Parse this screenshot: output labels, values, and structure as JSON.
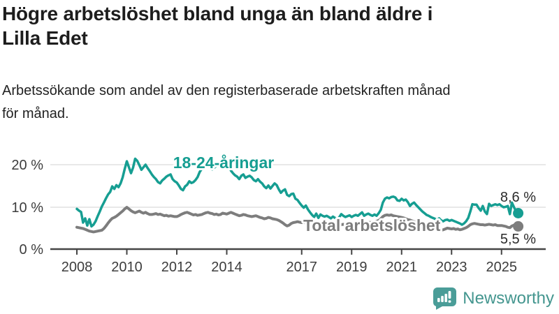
{
  "header": {
    "title_lines": [
      "Högre arbetslöshet bland unga än bland äldre i",
      "Lilla Edet"
    ],
    "subtitle_lines": [
      "Arbetssökande som andel av den registerbaserade arbetskraften månad",
      "för månad."
    ]
  },
  "footer": {
    "brand": "Newsworthy",
    "logo_icon": "bar-chart-speech-bubble",
    "logo_color": "#4a9d98",
    "brand_text_color": "#44968f"
  },
  "chart_data": {
    "type": "line",
    "x_unit": "month",
    "x_start": "2008-01",
    "x_end": "2025-09",
    "x_tick_years": [
      2008,
      2010,
      2012,
      2014,
      2017,
      2019,
      2021,
      2023,
      2025
    ],
    "x_tick_labels": [
      "2008",
      "2010",
      "2012",
      "2014",
      "2017",
      "2019",
      "2021",
      "2023",
      "2025"
    ],
    "y_ticks": [
      0,
      10,
      20
    ],
    "y_tick_labels": [
      "0 %",
      "10 %",
      "20 %"
    ],
    "ylim": [
      0,
      22.5
    ],
    "grid": "horizontal",
    "legend_position": "inline-labels",
    "series": [
      {
        "name": "18-24-åringar",
        "color": "#169e92",
        "end_label": "8,6 %",
        "end_value": 8.6,
        "values": [
          9.6,
          9.2,
          8.9,
          6.4,
          7.4,
          5.7,
          7.2,
          5.5,
          5.9,
          6.7,
          7.9,
          9.0,
          10.2,
          11.1,
          12.1,
          13.0,
          13.6,
          14.9,
          14.3,
          15.2,
          14.7,
          15.6,
          17.0,
          19.0,
          20.8,
          19.4,
          18.0,
          19.3,
          21.4,
          20.9,
          19.9,
          18.8,
          19.4,
          20.0,
          19.2,
          18.5,
          17.7,
          17.1,
          16.6,
          15.9,
          15.6,
          16.3,
          16.7,
          17.2,
          17.5,
          17.7,
          16.6,
          16.1,
          15.8,
          15.1,
          14.3,
          14.0,
          14.9,
          15.3,
          16.1,
          15.7,
          15.9,
          16.4,
          17.1,
          18.3,
          19.0,
          19.6,
          20.2,
          19.7,
          19.2,
          18.9,
          19.3,
          19.7,
          20.1,
          20.4,
          20.9,
          20.6,
          20.9,
          19.8,
          18.6,
          18.0,
          17.5,
          17.2,
          16.6,
          17.4,
          17.7,
          16.9,
          17.2,
          17.4,
          17.0,
          16.4,
          16.1,
          16.6,
          16.0,
          15.6,
          14.9,
          14.5,
          15.1,
          14.4,
          15.0,
          15.6,
          15.2,
          14.2,
          13.4,
          13.9,
          14.2,
          12.9,
          12.6,
          13.1,
          13.2,
          12.0,
          11.7,
          11.0,
          10.4,
          9.9,
          10.4,
          9.5,
          8.8,
          8.2,
          7.7,
          8.5,
          7.5,
          8.3,
          8.0,
          7.8,
          8.0,
          7.7,
          7.4,
          7.8,
          7.5,
          7.3,
          7.6,
          8.4,
          8.0,
          7.7,
          7.9,
          8.1,
          7.7,
          8.0,
          8.2,
          8.0,
          8.4,
          8.8,
          8.0,
          8.3,
          8.5,
          8.2,
          8.0,
          8.3,
          8.0,
          8.6,
          9.4,
          11.1,
          12.0,
          12.3,
          12.1,
          12.4,
          12.5,
          12.3,
          11.6,
          11.5,
          12.0,
          11.6,
          11.8,
          11.2,
          10.3,
          10.8,
          11.1,
          10.5,
          10.0,
          9.5,
          9.0,
          8.6,
          8.2,
          8.0,
          7.7,
          7.5,
          7.3,
          7.0,
          7.4,
          6.9,
          6.7,
          7.0,
          7.1,
          6.8,
          7.0,
          6.8,
          6.6,
          6.4,
          6.2,
          5.9,
          6.2,
          6.7,
          7.5,
          9.0,
          10.7,
          10.6,
          10.6,
          9.8,
          9.2,
          10.3,
          9.0,
          8.4,
          10.8,
          10.3,
          10.5,
          10.7,
          10.5,
          10.7,
          10.3,
          10.0,
          10.1,
          10.3,
          8.4,
          11.1,
          10.0,
          9.0,
          8.6
        ]
      },
      {
        "name": "Total arbetslöshet",
        "color": "#7d7d7d",
        "end_label": "5,5 %",
        "end_value": 5.5,
        "values": [
          5.3,
          5.2,
          5.1,
          5.0,
          4.8,
          4.6,
          4.4,
          4.3,
          4.2,
          4.3,
          4.4,
          4.5,
          4.6,
          5.0,
          5.6,
          6.3,
          6.9,
          7.4,
          7.6,
          7.9,
          8.3,
          8.7,
          9.1,
          9.6,
          10.0,
          9.6,
          9.2,
          8.9,
          8.7,
          8.9,
          9.1,
          8.8,
          8.6,
          8.8,
          8.5,
          8.3,
          8.3,
          8.4,
          8.5,
          8.3,
          8.4,
          8.2,
          8.0,
          8.1,
          7.9,
          8.0,
          7.9,
          7.8,
          7.8,
          8.0,
          8.3,
          8.5,
          8.7,
          8.8,
          8.6,
          8.4,
          8.2,
          8.3,
          8.1,
          8.2,
          8.3,
          8.5,
          8.7,
          8.8,
          8.6,
          8.5,
          8.3,
          8.4,
          8.2,
          8.3,
          8.6,
          8.5,
          8.4,
          8.6,
          8.8,
          8.6,
          8.4,
          8.2,
          8.0,
          8.1,
          8.3,
          8.2,
          8.0,
          7.9,
          7.8,
          7.9,
          8.0,
          7.8,
          7.6,
          7.5,
          7.3,
          7.4,
          7.6,
          7.5,
          7.3,
          7.2,
          7.1,
          6.9,
          6.6,
          6.3,
          5.9,
          5.6,
          5.8,
          6.2,
          6.4,
          6.5,
          6.6,
          6.5,
          6.4,
          6.5,
          6.3,
          6.1,
          6.0,
          6.1,
          5.9,
          6.0,
          6.2,
          6.1,
          6.0,
          6.1,
          6.1,
          6.0,
          5.9,
          6.0,
          6.1,
          5.9,
          5.8,
          5.9,
          6.0,
          5.9,
          6.0,
          6.1,
          6.2,
          6.1,
          6.2,
          6.3,
          6.2,
          6.3,
          6.4,
          6.3,
          6.5,
          6.4,
          6.5,
          6.6,
          6.7,
          6.9,
          7.3,
          7.8,
          8.1,
          8.2,
          8.1,
          8.2,
          8.0,
          7.9,
          7.8,
          7.7,
          7.6,
          7.5,
          7.3,
          7.1,
          7.0,
          6.8,
          6.6,
          6.5,
          6.3,
          6.0,
          5.8,
          5.6,
          5.1,
          5.2,
          5.2,
          5.1,
          5.0,
          4.9,
          4.7,
          4.6,
          4.7,
          4.9,
          5.1,
          5.0,
          4.9,
          5.0,
          4.8,
          4.9,
          4.7,
          4.8,
          5.0,
          5.2,
          5.5,
          5.9,
          6.1,
          6.2,
          6.1,
          6.0,
          5.9,
          5.9,
          5.8,
          5.9,
          6.0,
          5.9,
          5.8,
          5.9,
          5.7,
          5.7,
          5.7,
          5.6,
          5.5,
          5.3,
          5.2,
          5.6,
          5.8,
          5.7,
          5.5
        ]
      }
    ]
  }
}
